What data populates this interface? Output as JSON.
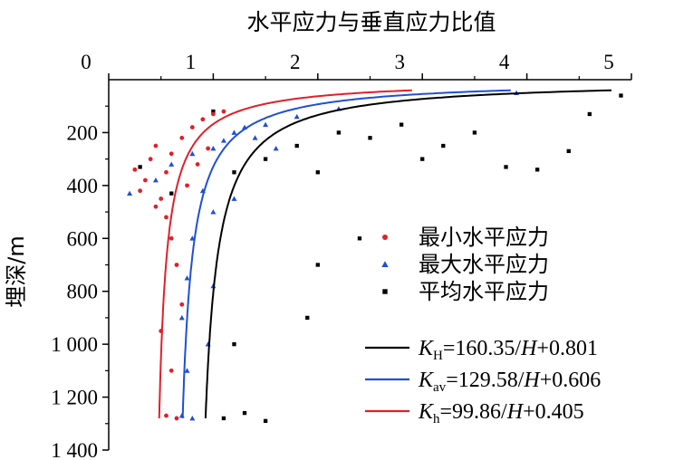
{
  "chart_data": {
    "type": "scatter",
    "title": "水平应力与垂直应力比值",
    "xlabel": "",
    "ylabel": "埋深/m",
    "xlim": [
      0,
      5
    ],
    "ylim": [
      0,
      1400
    ],
    "y_inverted": true,
    "x_axis_position": "top",
    "xticks": [
      "0",
      "1",
      "2",
      "3",
      "4",
      "5"
    ],
    "yticks": [
      "200",
      "400",
      "600",
      "800",
      "1 000",
      "1 200",
      "1 400"
    ],
    "legend_position": "right",
    "grid": false,
    "series": [
      {
        "name": "最小水平应力",
        "marker": "circle",
        "color": "#e0202a",
        "points": [
          [
            0.25,
            340
          ],
          [
            0.3,
            420
          ],
          [
            0.35,
            380
          ],
          [
            0.4,
            300
          ],
          [
            0.45,
            250
          ],
          [
            0.5,
            450
          ],
          [
            0.55,
            520
          ],
          [
            0.6,
            600
          ],
          [
            0.65,
            700
          ],
          [
            0.7,
            850
          ],
          [
            0.55,
            350
          ],
          [
            0.6,
            280
          ],
          [
            0.7,
            220
          ],
          [
            0.8,
            180
          ],
          [
            0.9,
            150
          ],
          [
            1.0,
            130
          ],
          [
            1.1,
            120
          ],
          [
            0.5,
            950
          ],
          [
            0.6,
            1100
          ],
          [
            0.55,
            1270
          ],
          [
            0.65,
            1280
          ],
          [
            0.45,
            480
          ],
          [
            0.75,
            400
          ],
          [
            0.85,
            320
          ],
          [
            0.95,
            260
          ]
        ]
      },
      {
        "name": "最大水平应力",
        "marker": "triangle",
        "color": "#1f4fd6",
        "points": [
          [
            0.2,
            430
          ],
          [
            0.45,
            380
          ],
          [
            0.6,
            320
          ],
          [
            0.8,
            280
          ],
          [
            1.0,
            260
          ],
          [
            1.1,
            230
          ],
          [
            1.2,
            200
          ],
          [
            1.3,
            180
          ],
          [
            1.4,
            220
          ],
          [
            1.5,
            170
          ],
          [
            0.9,
            420
          ],
          [
            1.0,
            500
          ],
          [
            0.8,
            600
          ],
          [
            0.75,
            750
          ],
          [
            0.7,
            900
          ],
          [
            0.75,
            1100
          ],
          [
            0.8,
            1280
          ],
          [
            0.7,
            1270
          ],
          [
            1.2,
            450
          ],
          [
            1.6,
            260
          ],
          [
            1.8,
            140
          ],
          [
            2.2,
            110
          ],
          [
            3.9,
            50
          ],
          [
            1.0,
            780
          ],
          [
            0.95,
            1000
          ]
        ]
      },
      {
        "name": "平均水平应力",
        "marker": "square",
        "color": "#000000",
        "points": [
          [
            0.3,
            330
          ],
          [
            0.6,
            430
          ],
          [
            1.0,
            120
          ],
          [
            1.2,
            350
          ],
          [
            1.5,
            300
          ],
          [
            1.8,
            250
          ],
          [
            2.0,
            350
          ],
          [
            2.2,
            200
          ],
          [
            2.5,
            220
          ],
          [
            2.8,
            170
          ],
          [
            3.0,
            300
          ],
          [
            3.2,
            250
          ],
          [
            3.5,
            200
          ],
          [
            3.8,
            330
          ],
          [
            4.1,
            340
          ],
          [
            4.4,
            270
          ],
          [
            4.6,
            130
          ],
          [
            2.4,
            600
          ],
          [
            2.0,
            700
          ],
          [
            1.9,
            900
          ],
          [
            1.2,
            1000
          ],
          [
            1.3,
            1260
          ],
          [
            1.1,
            1280
          ],
          [
            1.5,
            1290
          ],
          [
            4.9,
            60
          ]
        ]
      }
    ],
    "fit_lines": [
      {
        "name": "KH",
        "label": "K",
        "sub": "H",
        "rest": "=160.35/",
        "var": "H",
        "tail": "+0.801",
        "a": 160.35,
        "b": 0.801,
        "color": "#000000"
      },
      {
        "name": "Kav",
        "label": "K",
        "sub": "av",
        "rest": "=129.58/",
        "var": "H",
        "tail": "+0.606",
        "a": 129.58,
        "b": 0.606,
        "color": "#1f4fd6"
      },
      {
        "name": "Kh",
        "label": "K",
        "sub": "h",
        "rest": "=99.86/",
        "var": "H",
        "tail": "+0.405",
        "a": 99.86,
        "b": 0.405,
        "color": "#e0202a"
      }
    ],
    "fit_h_range": [
      40,
      1280
    ]
  }
}
